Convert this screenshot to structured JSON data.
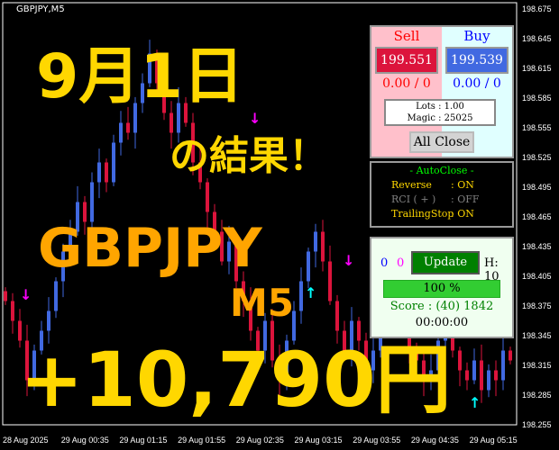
{
  "chart": {
    "symbol_title": "GBPJPY,M5",
    "price_labels": [
      "198.675",
      "198.645",
      "198.615",
      "198.585",
      "198.555",
      "198.525",
      "198.495",
      "198.465",
      "198.435",
      "198.405",
      "198.375",
      "198.345",
      "198.315",
      "198.285",
      "198.255"
    ],
    "time_labels": [
      "28 Aug 2025",
      "29 Aug 00:35",
      "29 Aug 01:15",
      "29 Aug 01:55",
      "29 Aug 02:35",
      "29 Aug 03:15",
      "29 Aug 03:55",
      "29 Aug 04:35",
      "29 Aug 05:15"
    ],
    "closes": [
      198.38,
      198.36,
      198.34,
      198.3,
      198.33,
      198.35,
      198.37,
      198.4,
      198.43,
      198.45,
      198.48,
      198.46,
      198.5,
      198.52,
      198.5,
      198.54,
      198.56,
      198.55,
      198.58,
      198.6,
      198.63,
      198.6,
      198.57,
      198.55,
      198.58,
      198.56,
      198.52,
      198.5,
      198.47,
      198.45,
      198.42,
      198.44,
      198.4,
      198.38,
      198.35,
      198.33,
      198.36,
      198.32,
      198.3,
      198.34,
      198.37,
      198.4,
      198.43,
      198.45,
      198.42,
      198.38,
      198.35,
      198.33,
      198.36,
      198.34,
      198.31,
      198.33,
      198.36,
      198.38,
      198.37,
      198.35,
      198.33,
      198.32,
      198.3,
      198.31,
      198.34,
      198.36,
      198.33,
      198.31,
      198.3,
      198.32,
      198.29,
      198.31,
      198.3,
      198.33,
      198.32
    ],
    "up_color": "#4169e1",
    "down_color": "#dc143c"
  },
  "overlay": {
    "date": "9月1日",
    "result": "の結果！",
    "pair": "GBPJPY",
    "timeframe": "M5",
    "profit": "+10,790円"
  },
  "panel": {
    "sell_label": "Sell",
    "buy_label": "Buy",
    "sell_price": "199.551",
    "buy_price": "199.539",
    "sell_pnl": "0.00 / 0",
    "buy_pnl": "0.00 / 0",
    "lots": "Lots   : 1.00",
    "magic": "Magic : 25025",
    "all_close": "All Close",
    "autoclose_title": "- AutoClose -",
    "autoclose": [
      {
        "name": "Reverse",
        "value": ": ON",
        "color": "#ffd700"
      },
      {
        "name": "RCI  ( + )",
        "value": ": OFF",
        "color": "#808080"
      },
      {
        "name": "TrailingStop",
        "value": ": ON",
        "color": "#ffd700"
      }
    ],
    "count_blue": "0",
    "count_magenta": "0",
    "update": "Update",
    "h": "H: 10",
    "progress_text": "100 %",
    "progress": 100,
    "score": "Score : (40) 1842",
    "timer": "00:00:00"
  }
}
